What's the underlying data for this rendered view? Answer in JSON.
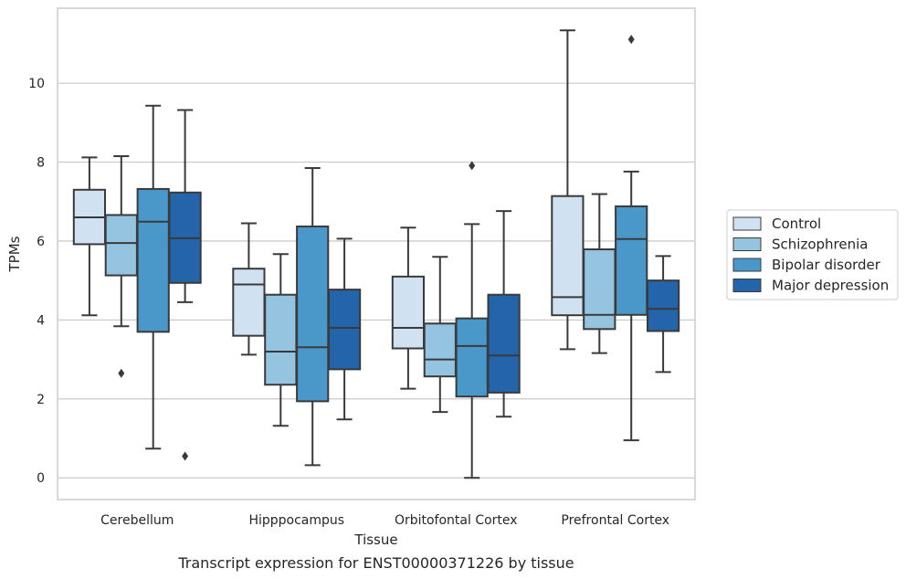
{
  "chart_data": {
    "type": "box",
    "caption": "Transcript expression for ENST00000371226 by tissue",
    "xlabel": "Tissue",
    "ylabel": "TPMs",
    "ylim": [
      -0.55,
      11.9
    ],
    "yticks": [
      0,
      2,
      4,
      6,
      8,
      10
    ],
    "grid": true,
    "legend_position": "right",
    "categories": [
      "Cerebellum",
      "Hipppocampus",
      "Orbitofontal Cortex",
      "Prefrontal Cortex"
    ],
    "series": [
      {
        "name": "Control",
        "color": "#d0e1f2",
        "boxes": [
          {
            "whislo": 4.12,
            "q1": 5.92,
            "med": 6.6,
            "q3": 7.3,
            "whishi": 8.12,
            "fliers": []
          },
          {
            "whislo": 3.12,
            "q1": 3.6,
            "med": 4.9,
            "q3": 5.3,
            "whishi": 6.45,
            "fliers": []
          },
          {
            "whislo": 2.26,
            "q1": 3.28,
            "med": 3.8,
            "q3": 5.1,
            "whishi": 6.34,
            "fliers": []
          },
          {
            "whislo": 3.26,
            "q1": 4.12,
            "med": 4.58,
            "q3": 7.14,
            "whishi": 11.34,
            "fliers": []
          }
        ]
      },
      {
        "name": "Schizophrenia",
        "color": "#94c4df",
        "boxes": [
          {
            "whislo": 3.84,
            "q1": 5.13,
            "med": 5.95,
            "q3": 6.66,
            "whishi": 8.15,
            "fliers": [
              2.65
            ]
          },
          {
            "whislo": 1.32,
            "q1": 2.36,
            "med": 3.2,
            "q3": 4.64,
            "whishi": 5.67,
            "fliers": []
          },
          {
            "whislo": 1.67,
            "q1": 2.57,
            "med": 3.0,
            "q3": 3.91,
            "whishi": 5.6,
            "fliers": []
          },
          {
            "whislo": 3.16,
            "q1": 3.77,
            "med": 4.13,
            "q3": 5.79,
            "whishi": 7.19,
            "fliers": []
          }
        ]
      },
      {
        "name": "Bipolar disorder",
        "color": "#4a98c9",
        "boxes": [
          {
            "whislo": 0.74,
            "q1": 3.7,
            "med": 6.49,
            "q3": 7.32,
            "whishi": 9.43,
            "fliers": []
          },
          {
            "whislo": 0.32,
            "q1": 1.94,
            "med": 3.31,
            "q3": 6.37,
            "whishi": 7.85,
            "fliers": []
          },
          {
            "whislo": 0.0,
            "q1": 2.06,
            "med": 3.34,
            "q3": 4.04,
            "whishi": 6.43,
            "fliers": [
              7.91
            ]
          },
          {
            "whislo": 0.95,
            "q1": 4.13,
            "med": 6.05,
            "q3": 6.88,
            "whishi": 7.76,
            "fliers": [
              11.11
            ]
          }
        ]
      },
      {
        "name": "Major depression",
        "color": "#2464ab",
        "boxes": [
          {
            "whislo": 4.45,
            "q1": 4.94,
            "med": 6.07,
            "q3": 7.23,
            "whishi": 9.32,
            "fliers": [
              0.55
            ]
          },
          {
            "whislo": 1.48,
            "q1": 2.75,
            "med": 3.8,
            "q3": 4.77,
            "whishi": 6.06,
            "fliers": []
          },
          {
            "whislo": 1.55,
            "q1": 2.16,
            "med": 3.1,
            "q3": 4.64,
            "whishi": 6.76,
            "fliers": []
          },
          {
            "whislo": 2.68,
            "q1": 3.72,
            "med": 4.28,
            "q3": 5.0,
            "whishi": 5.62,
            "fliers": []
          }
        ]
      }
    ]
  }
}
